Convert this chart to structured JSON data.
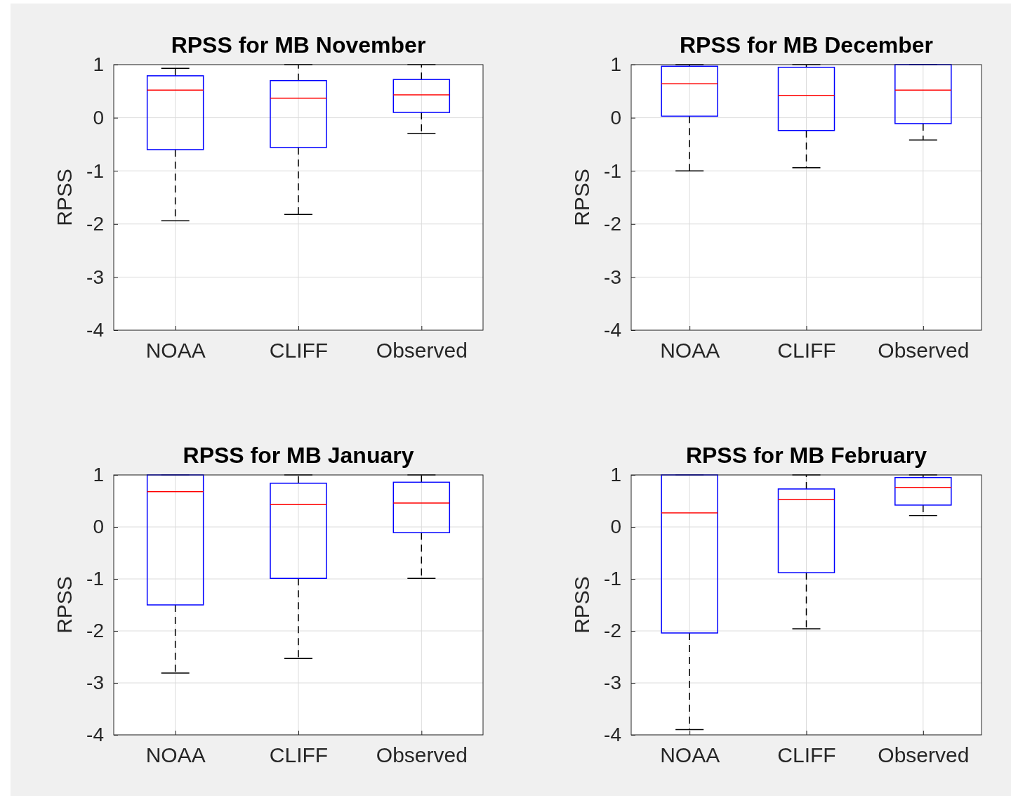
{
  "chart_data": [
    {
      "type": "box",
      "title": "RPSS for MB November",
      "ylabel": "RPSS",
      "categories": [
        "NOAA",
        "CLIFF",
        "Observed"
      ],
      "ylim": [
        -4,
        1
      ],
      "yticks": [
        -4,
        -3,
        -2,
        -1,
        0,
        1
      ],
      "grid": true,
      "boxes": [
        {
          "low": -1.94,
          "q1": -0.6,
          "median": 0.52,
          "q3": 0.79,
          "high": 0.93
        },
        {
          "low": -1.82,
          "q1": -0.56,
          "median": 0.37,
          "q3": 0.7,
          "high": 1
        },
        {
          "low": -0.3,
          "q1": 0.1,
          "median": 0.43,
          "q3": 0.72,
          "high": 1
        }
      ]
    },
    {
      "type": "box",
      "title": "RPSS for MB December",
      "ylabel": "RPSS",
      "categories": [
        "NOAA",
        "CLIFF",
        "Observed"
      ],
      "ylim": [
        -4,
        1
      ],
      "yticks": [
        -4,
        -3,
        -2,
        -1,
        0,
        1
      ],
      "grid": true,
      "boxes": [
        {
          "low": -1.0,
          "q1": 0.03,
          "median": 0.64,
          "q3": 0.97,
          "high": 1
        },
        {
          "low": -0.94,
          "q1": -0.24,
          "median": 0.42,
          "q3": 0.95,
          "high": 1
        },
        {
          "low": -0.42,
          "q1": -0.11,
          "median": 0.52,
          "q3": 1,
          "high": 1
        }
      ]
    },
    {
      "type": "box",
      "title": "RPSS for MB January",
      "ylabel": "RPSS",
      "categories": [
        "NOAA",
        "CLIFF",
        "Observed"
      ],
      "ylim": [
        -4,
        1
      ],
      "yticks": [
        -4,
        -3,
        -2,
        -1,
        0,
        1
      ],
      "grid": true,
      "boxes": [
        {
          "low": -2.81,
          "q1": -1.5,
          "median": 0.68,
          "q3": 1,
          "high": 1
        },
        {
          "low": -2.53,
          "q1": -0.99,
          "median": 0.43,
          "q3": 0.84,
          "high": 1
        },
        {
          "low": -0.99,
          "q1": -0.11,
          "median": 0.46,
          "q3": 0.86,
          "high": 1
        }
      ]
    },
    {
      "type": "box",
      "title": "RPSS for MB February",
      "ylabel": "RPSS",
      "categories": [
        "NOAA",
        "CLIFF",
        "Observed"
      ],
      "ylim": [
        -4,
        1
      ],
      "yticks": [
        -4,
        -3,
        -2,
        -1,
        0,
        1
      ],
      "grid": true,
      "boxes": [
        {
          "low": -3.9,
          "q1": -2.04,
          "median": 0.27,
          "q3": 1,
          "high": 1
        },
        {
          "low": -1.96,
          "q1": -0.88,
          "median": 0.53,
          "q3": 0.73,
          "high": 1
        },
        {
          "low": 0.22,
          "q1": 0.42,
          "median": 0.76,
          "q3": 0.95,
          "high": 1
        }
      ]
    }
  ]
}
